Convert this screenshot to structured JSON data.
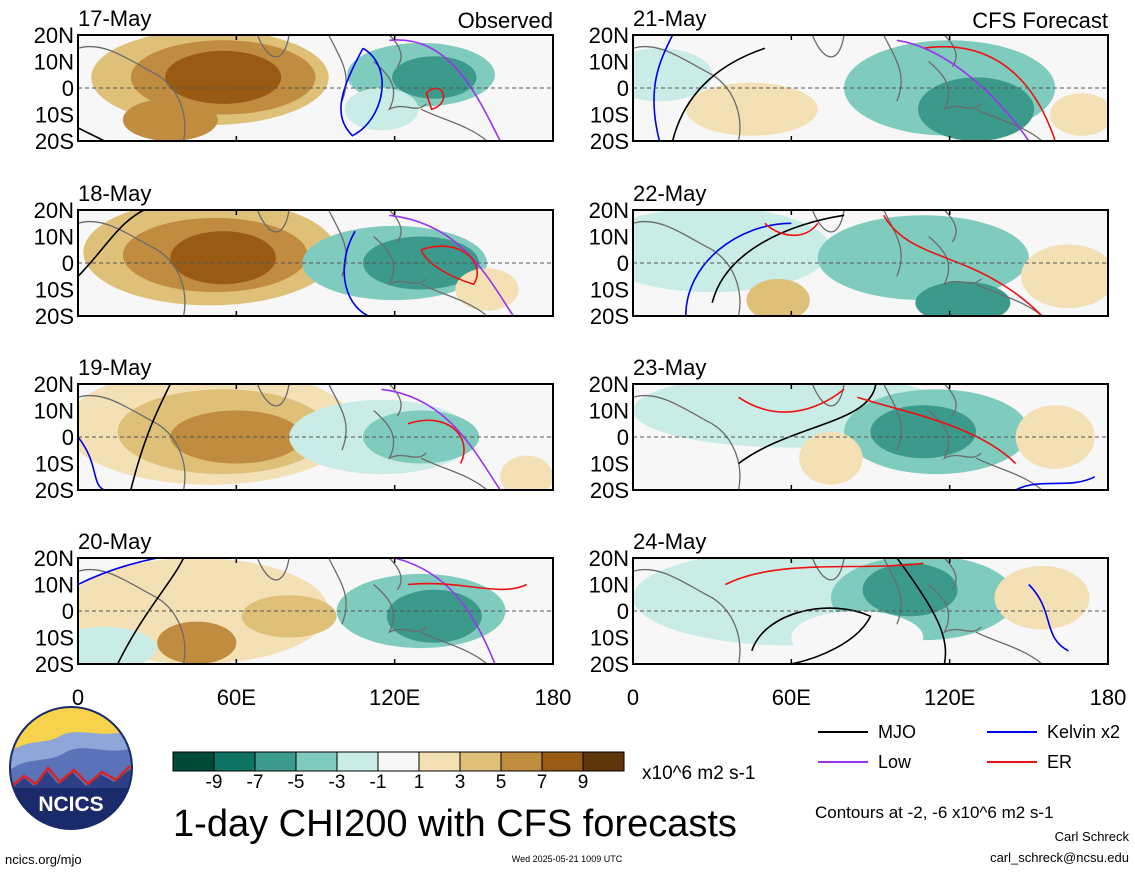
{
  "header": {
    "left_label": "Observed",
    "right_label": "CFS Forecast"
  },
  "panels": [
    {
      "date": "17-May",
      "column": "observed"
    },
    {
      "date": "18-May",
      "column": "observed"
    },
    {
      "date": "19-May",
      "column": "observed"
    },
    {
      "date": "20-May",
      "column": "observed"
    },
    {
      "date": "21-May",
      "column": "forecast"
    },
    {
      "date": "22-May",
      "column": "forecast"
    },
    {
      "date": "23-May",
      "column": "forecast"
    },
    {
      "date": "24-May",
      "column": "forecast"
    }
  ],
  "chart_data": {
    "type": "heatmap",
    "title": "1-day CHI200 with CFS forecasts",
    "variable": "CHI200",
    "units": "x10^6 m2 s-1",
    "x_ticks": [
      "0",
      "60E",
      "120E",
      "180"
    ],
    "y_ticks": [
      "20N",
      "10N",
      "0",
      "10S",
      "20S"
    ],
    "color_scale": {
      "tick_labels": [
        "-9",
        "-7",
        "-5",
        "-3",
        "-1",
        "1",
        "3",
        "5",
        "7",
        "9"
      ],
      "colors": [
        "#014a3a",
        "#0f7363",
        "#3c9a8c",
        "#7fcbbd",
        "#c9ece6",
        "#f7f7f7",
        "#f3e0b4",
        "#dfc078",
        "#c08c3f",
        "#995a14",
        "#5f360a"
      ]
    },
    "contour_legend": [
      {
        "label": "MJO",
        "color": "#000000"
      },
      {
        "label": "Kelvin x2",
        "color": "#0000ee"
      },
      {
        "label": "Low",
        "color": "#9933ee"
      },
      {
        "label": "ER",
        "color": "#ee1111"
      }
    ],
    "contour_note": "Contours at -2, -6 x10^6 m2 s-1"
  },
  "footer": {
    "logo_text": "NCICS",
    "url": "ncics.org/mjo",
    "timestamp": "Wed 2025-05-21 1009 UTC",
    "author": "Carl Schreck",
    "email": "carl_schreck@ncsu.edu"
  }
}
